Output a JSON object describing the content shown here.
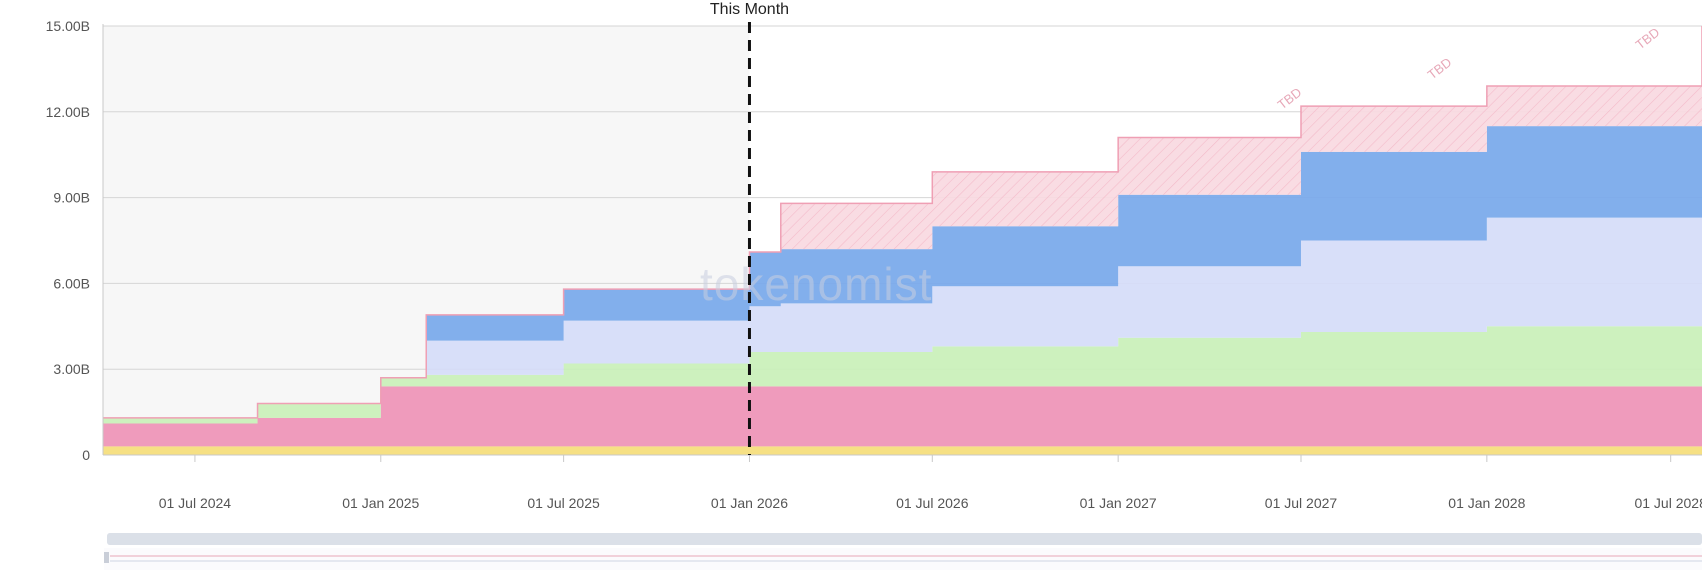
{
  "chart_data": {
    "type": "area",
    "stacked": true,
    "step": true,
    "x_axis": {
      "type": "date",
      "range": [
        "2024-04-01",
        "2028-08-01"
      ],
      "tick_labels": [
        "01 Jul 2024",
        "01 Jan 2025",
        "01 Jul 2025",
        "01 Jan 2026",
        "01 Jul 2026",
        "01 Jan 2027",
        "01 Jul 2027",
        "01 Jan 2028",
        "01 Jul 2028"
      ]
    },
    "y_axis": {
      "range": [
        0,
        15
      ],
      "unit_scale": "billions",
      "tick_labels": [
        "0",
        "3.00B",
        "6.00B",
        "9.00B",
        "12.00B",
        "15.00B"
      ]
    },
    "grid": true,
    "markers": [
      {
        "date": "2026-01-01",
        "label": "This Month",
        "style": "dashed"
      }
    ],
    "annotations": [
      "TBD",
      "TBD",
      "TBD"
    ],
    "watermark": "tokenomist",
    "x": [
      "2024-04-01",
      "2024-09-01",
      "2025-01-01",
      "2025-02-15",
      "2025-07-01",
      "2026-01-01",
      "2026-02-01",
      "2026-07-01",
      "2027-01-01",
      "2027-07-01",
      "2028-01-01",
      "2028-08-01"
    ],
    "series": [
      {
        "color": "#f5dd7a",
        "values": [
          0.3,
          0.3,
          0.3,
          0.3,
          0.3,
          0.3,
          0.3,
          0.3,
          0.3,
          0.3,
          0.3,
          0.3
        ]
      },
      {
        "color": "#ee93b6",
        "values": [
          0.8,
          1.0,
          2.1,
          2.1,
          2.1,
          2.1,
          2.1,
          2.1,
          2.1,
          2.1,
          2.1,
          2.1
        ]
      },
      {
        "color": "#c9f0b8",
        "values": [
          0.2,
          0.5,
          0.3,
          0.4,
          0.8,
          1.2,
          1.2,
          1.4,
          1.7,
          1.9,
          2.1,
          2.3
        ]
      },
      {
        "color": "#d5dcf8",
        "values": [
          0,
          0,
          0,
          1.2,
          1.5,
          1.6,
          1.7,
          2.1,
          2.5,
          3.2,
          3.8,
          4.5
        ]
      },
      {
        "color": "#77a8ea",
        "values": [
          0,
          0,
          0,
          0.9,
          1.1,
          1.9,
          1.9,
          2.1,
          2.5,
          3.1,
          3.2,
          3.8
        ]
      },
      {
        "color": "#f8d9e1",
        "values": [
          0,
          0,
          0,
          0,
          0,
          0,
          1.6,
          1.9,
          2.0,
          1.6,
          1.4,
          2.0
        ]
      }
    ]
  }
}
